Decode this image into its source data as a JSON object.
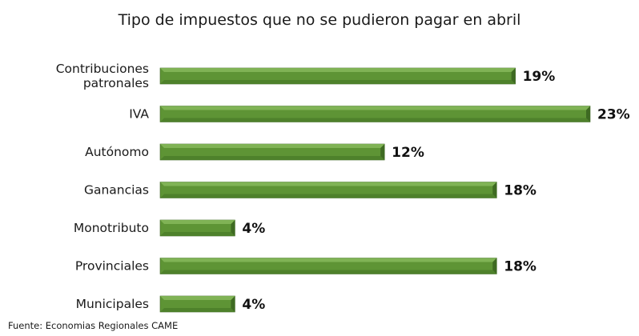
{
  "chart_data": {
    "type": "bar",
    "orientation": "horizontal",
    "title": "Tipo de impuestos que no se pudieron pagar en abril",
    "categories": [
      [
        "Contribuciones",
        "patronales"
      ],
      [
        "IVA"
      ],
      [
        "Autónomo"
      ],
      [
        "Ganancias"
      ],
      [
        "Monotributo"
      ],
      [
        "Provinciales"
      ],
      [
        "Municipales"
      ]
    ],
    "values": [
      19,
      23,
      12,
      18,
      4,
      18,
      4
    ],
    "value_labels": [
      "19%",
      "23%",
      "12%",
      "18%",
      "4%",
      "18%",
      "4%"
    ],
    "unit": "%",
    "xlim": [
      0,
      23
    ],
    "grid": false,
    "legend": "none",
    "bar_color": "#5e9435",
    "bar_edge_color": "#3b6420"
  },
  "source": "Fuente: Economias Regionales CAME"
}
